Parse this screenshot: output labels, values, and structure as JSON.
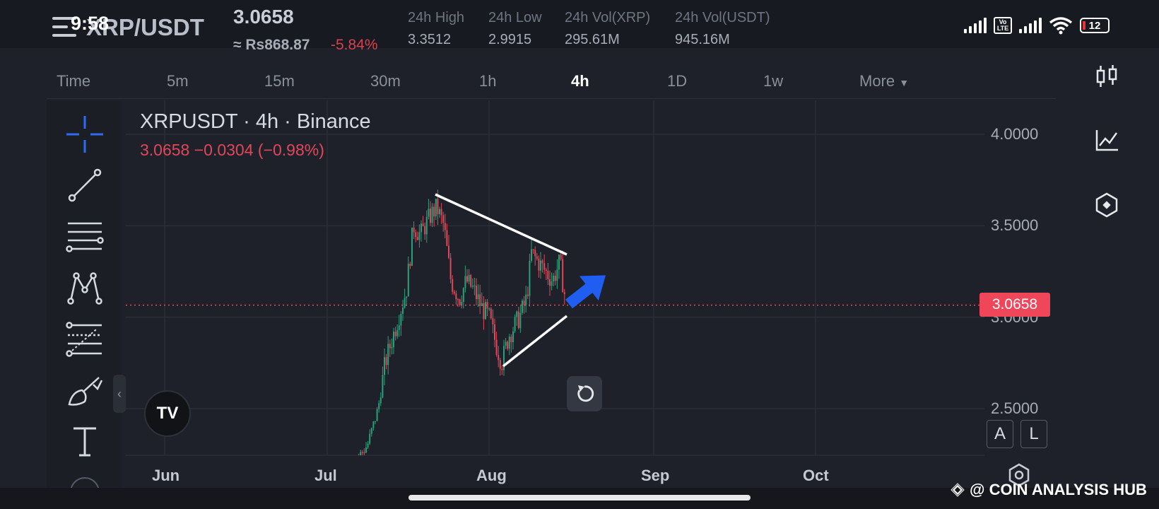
{
  "status_bar": {
    "time": "9:58",
    "battery": "12",
    "volte": "Vo LTE"
  },
  "header": {
    "pair": "XRP/USDT",
    "price": "3.0658",
    "fiat_price": "≈ Rs868.87",
    "change_pct": "-5.84%",
    "stats": [
      {
        "label": "24h High",
        "value": "3.3512"
      },
      {
        "label": "24h Low",
        "value": "2.9915"
      },
      {
        "label": "24h Vol(XRP)",
        "value": "295.61M"
      },
      {
        "label": "24h Vol(USDT)",
        "value": "945.16M"
      }
    ]
  },
  "timeframes": {
    "items": [
      "Time",
      "5m",
      "15m",
      "30m",
      "1h",
      "4h",
      "1D",
      "1w",
      "More"
    ],
    "active": "4h"
  },
  "tools": [
    "crosshair-icon",
    "trendline-icon",
    "horizontal-lines-icon",
    "pattern-icon",
    "fib-icon",
    "brush-icon",
    "text-icon",
    "more-icon"
  ],
  "chart_legend": {
    "title": "XRPUSDT · 4h · Binance",
    "quote": "3.0658  −0.0304 (−0.98%)"
  },
  "chart_data": {
    "type": "candlestick",
    "symbol": "XRPUSDT",
    "interval": "4h",
    "exchange": "Binance",
    "current_price": 3.0658,
    "y_ticks": [
      "4.0000",
      "3.5000",
      "3.0000",
      "2.5000"
    ],
    "x_ticks": [
      "Jun",
      "Jul",
      "Aug",
      "Sep",
      "Oct"
    ],
    "ylim": [
      2.25,
      4.2
    ],
    "grid": true,
    "price_tag": "3.0658",
    "series_close_approx": [
      {
        "x": "Jun",
        "y": 2.2
      },
      {
        "x": "Jul",
        "y": 2.2
      },
      {
        "x": "Jul-10",
        "y": 2.45
      },
      {
        "x": "Jul-15",
        "y": 2.95
      },
      {
        "x": "Jul-18",
        "y": 3.6
      },
      {
        "x": "Jul-22",
        "y": 3.55
      },
      {
        "x": "Jul-25",
        "y": 3.15
      },
      {
        "x": "Aug",
        "y": 3.05
      },
      {
        "x": "Aug-03",
        "y": 2.75
      },
      {
        "x": "Aug-08",
        "y": 3.35
      },
      {
        "x": "Aug-12",
        "y": 3.25
      },
      {
        "x": "Aug-14",
        "y": 3.07
      }
    ],
    "annotations": [
      "upper trendline",
      "lower trendline",
      "blue arrow up-right"
    ]
  },
  "buttons": {
    "auto": "A",
    "log": "L",
    "collapse": "‹"
  },
  "logo_text": "TV",
  "watermark": "@ COIN ANALYSIS HUB"
}
